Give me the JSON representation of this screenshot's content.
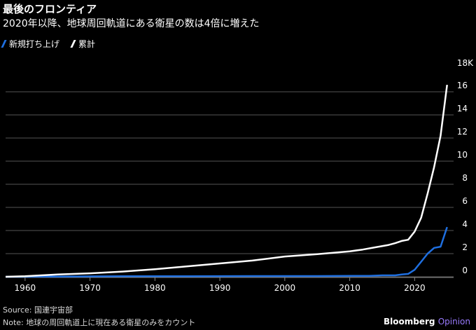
{
  "title": "最後のフロンティア",
  "subtitle": "2020年以降、地球周回軌道にある衛星の数は4倍に増えた",
  "legend": [
    {
      "label": "新規打ち上げ",
      "color": "#1f6fe0"
    },
    {
      "label": "累計",
      "color": "#ffffff"
    }
  ],
  "footer": {
    "source": "Source: 国連宇宙部",
    "note": "Note: 地球の周回軌道上に現在ある衛星のみをカウント"
  },
  "brand": {
    "name": "Bloomberg",
    "product": "Opinion"
  },
  "colors": {
    "background": "#000000",
    "grid": "#555555",
    "new": "#1f6fe0",
    "cumulative": "#ffffff"
  },
  "chart_data": {
    "type": "line",
    "title": "最後のフロンティア",
    "xlabel": "",
    "ylabel": "",
    "y_unit_label": "18K",
    "xlim": [
      1957,
      2026
    ],
    "ylim": [
      0,
      18
    ],
    "x_ticks": [
      1960,
      1970,
      1980,
      1990,
      2000,
      2010,
      2020
    ],
    "y_ticks": [
      0,
      2,
      4,
      6,
      8,
      10,
      12,
      14,
      16
    ],
    "grid": true,
    "legend_position": "top-left",
    "series": [
      {
        "name": "新規打ち上げ",
        "color": "#1f6fe0",
        "x": [
          1957,
          1965,
          1975,
          1985,
          1995,
          2005,
          2010,
          2013,
          2015,
          2017,
          2018,
          2019,
          2020,
          2021,
          2022,
          2023,
          2024,
          2025
        ],
        "y": [
          0,
          0.02,
          0.04,
          0.05,
          0.06,
          0.06,
          0.07,
          0.08,
          0.12,
          0.12,
          0.2,
          0.25,
          0.6,
          1.3,
          2.0,
          2.5,
          2.6,
          4.3
        ]
      },
      {
        "name": "累計",
        "color": "#ffffff",
        "x": [
          1957,
          1960,
          1965,
          1970,
          1975,
          1980,
          1985,
          1990,
          1995,
          2000,
          2005,
          2010,
          2012,
          2014,
          2016,
          2017,
          2018,
          2019,
          2020,
          2021,
          2022,
          2023,
          2024,
          2025
        ],
        "y": [
          0,
          0.05,
          0.2,
          0.3,
          0.45,
          0.65,
          0.9,
          1.15,
          1.4,
          1.75,
          1.95,
          2.2,
          2.35,
          2.55,
          2.75,
          2.9,
          3.1,
          3.2,
          3.9,
          5.1,
          7.2,
          9.5,
          12.2,
          16.6
        ]
      }
    ]
  }
}
